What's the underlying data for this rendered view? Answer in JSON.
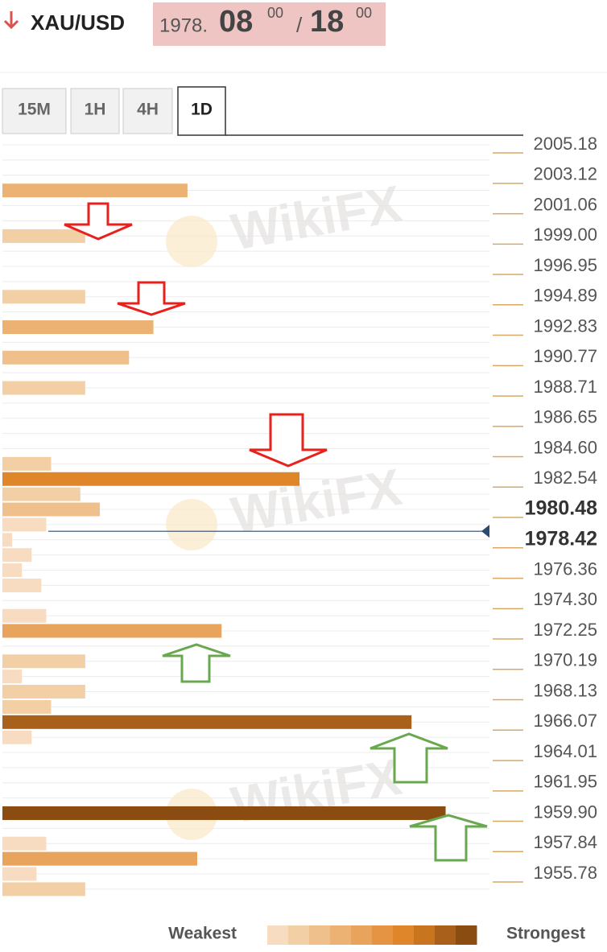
{
  "header": {
    "symbol": "XAU/USD",
    "bid_main": "1978.",
    "bid_big": "08",
    "bid_sup": "00",
    "separator": "/",
    "ask_big": "18",
    "ask_sup": "00"
  },
  "tabs": [
    "15M",
    "1H",
    "4H",
    "1D"
  ],
  "active_tab": 3,
  "watermark": "WikiFX",
  "chart_data": {
    "type": "hbar",
    "x": [
      2002.09,
      1999.0,
      1994.89,
      1992.83,
      1990.77,
      1988.71,
      1983.57,
      1982.54,
      1981.51,
      1980.48,
      1979.45,
      1978.42,
      1977.39,
      1976.36,
      1975.33,
      1973.27,
      1972.25,
      1970.19,
      1969.16,
      1968.13,
      1967.1,
      1966.07,
      1965.04,
      1959.9,
      1957.84,
      1956.81,
      1955.78,
      1954.75
    ],
    "values": [
      38,
      17,
      17,
      31,
      26,
      17,
      10,
      61,
      16,
      20,
      9,
      2,
      6,
      4,
      8,
      9,
      45,
      17,
      4,
      17,
      10,
      84,
      6,
      91,
      9,
      40,
      7,
      17
    ],
    "xlim": [
      0,
      100
    ],
    "ylim": [
      1954.2,
      2006.0
    ],
    "yticks": [
      2005.18,
      2003.12,
      2001.06,
      {
        "value": 1999.0,
        "label": "1999.00"
      },
      1996.95,
      1994.89,
      1992.83,
      1990.77,
      1988.71,
      1986.65,
      {
        "value": 1984.6,
        "label": "1984.60"
      },
      1982.54,
      1980.48,
      1978.42,
      1976.36,
      {
        "value": 1974.3,
        "label": "1974.30"
      },
      1972.25,
      1970.19,
      1968.13,
      1966.07,
      1964.01,
      1961.95,
      {
        "value": 1959.9,
        "label": "1959.90"
      },
      1957.84,
      1955.78
    ],
    "bold_ticks": [
      1980.48,
      1978.42
    ],
    "price_line": 1979.0,
    "legend": {
      "weak_label": "Weakest",
      "strong_label": "Strongest",
      "colors": [
        "#f7dcc2",
        "#f3cfa6",
        "#efc08c",
        "#ebb274",
        "#e8a35c",
        "#e59443",
        "#e0862a",
        "#c97520",
        "#a9601a",
        "#8b4c12"
      ]
    }
  }
}
